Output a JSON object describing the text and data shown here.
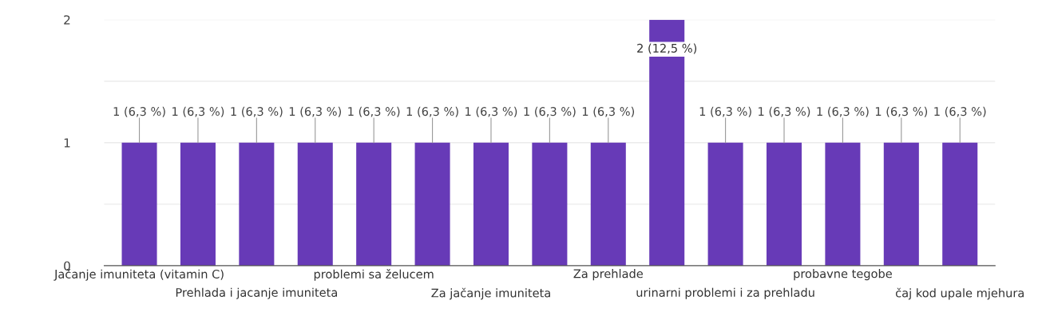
{
  "chart_data": {
    "type": "bar",
    "categories": [
      "Jačanje imuniteta (vitamin C)",
      null,
      "Prehlada i jacanje imuniteta",
      null,
      "problemi sa želucem",
      null,
      "Za jačanje imuniteta",
      null,
      "Za prehlade",
      null,
      "urinarni problemi i za prehladu",
      null,
      "probavne tegobe",
      null,
      "čaj kod upale mjehura"
    ],
    "values": [
      1,
      1,
      1,
      1,
      1,
      1,
      1,
      1,
      1,
      2,
      1,
      1,
      1,
      1,
      1
    ],
    "value_labels": [
      "1 (6,3 %)",
      "1 (6,3 %)",
      "1 (6,3 %)",
      "1 (6,3 %)",
      "1 (6,3 %)",
      "1 (6,3 %)",
      "1 (6,3 %)",
      "1 (6,3 %)",
      "1 (6,3 %)",
      "2 (12,5 %)",
      "1 (6,3 %)",
      "1 (6,3 %)",
      "1 (6,3 %)",
      "1 (6,3 %)",
      "1 (6,3 %)"
    ],
    "color": "#673ab7",
    "ylim": [
      0,
      2
    ],
    "yticks": [
      0,
      {
        "value": 0.5,
        "label": null
      },
      1,
      {
        "value": 1.5,
        "label": null
      },
      2
    ],
    "grid": "y"
  }
}
